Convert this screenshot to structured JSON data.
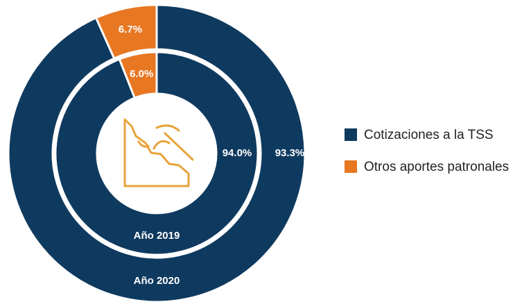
{
  "chart_data": {
    "type": "donut",
    "categories": [
      "Cotizaciones a la TSS",
      "Otros aportes patronales"
    ],
    "colors": [
      "#0f3a5f",
      "#e87722"
    ],
    "series": [
      {
        "name": "Año 2020",
        "values": [
          93.3,
          6.7
        ],
        "value_labels": [
          "93.3%",
          "6.7%"
        ]
      },
      {
        "name": "Año 2019",
        "values": [
          94.0,
          6.0
        ],
        "value_labels": [
          "94.0%",
          "6.0%"
        ]
      }
    ],
    "legend": "right"
  }
}
